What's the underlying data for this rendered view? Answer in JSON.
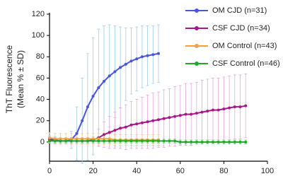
{
  "chart_data": {
    "type": "line",
    "ylabel": [
      "ThT Fluorescence",
      "(Mean % ± SD)"
    ],
    "xlim": [
      0,
      100
    ],
    "xticks": [
      0,
      20,
      40,
      60,
      80,
      100
    ],
    "ylim": [
      -18,
      120
    ],
    "yticks": [
      0,
      20,
      40,
      60,
      80,
      100,
      120
    ],
    "legend": "upper right",
    "series": [
      {
        "name": "OM CJD (n=31)",
        "color": "#4a55dd",
        "error_color": "#9fcbe6",
        "x": [
          0,
          2.5,
          5,
          7.5,
          10,
          12.5,
          15,
          17.5,
          20,
          22.5,
          25,
          27.5,
          30,
          32.5,
          35,
          37.5,
          40,
          42.5,
          45,
          47.5,
          50
        ],
        "values": [
          3,
          2,
          1,
          1,
          2,
          8,
          20,
          33,
          43,
          51,
          57,
          62,
          66,
          70,
          73,
          76,
          78,
          80,
          81,
          82,
          83
        ],
        "errors": [
          3,
          3,
          3,
          3,
          8,
          25,
          40,
          50,
          55,
          55,
          52,
          48,
          43,
          38,
          34,
          31,
          30,
          29,
          28,
          27,
          27
        ]
      },
      {
        "name": "CSF CJD (n=34)",
        "color": "#a8168c",
        "error_color": "#e6a6dc",
        "x": [
          0,
          2.5,
          5,
          7.5,
          10,
          12.5,
          15,
          17.5,
          20,
          22.5,
          25,
          27.5,
          30,
          32.5,
          35,
          37.5,
          40,
          42.5,
          45,
          47.5,
          50,
          52.5,
          55,
          57.5,
          60,
          62.5,
          65,
          67.5,
          70,
          72.5,
          75,
          77.5,
          80,
          82.5,
          85,
          87.5,
          90
        ],
        "values": [
          2,
          1,
          1,
          1,
          1,
          1,
          1,
          1,
          2,
          4,
          7,
          9,
          11,
          13,
          14,
          16,
          17,
          18,
          19,
          20,
          21,
          22,
          23,
          24,
          25,
          26,
          26,
          27,
          28,
          29,
          30,
          30,
          31,
          32,
          33,
          33,
          34
        ],
        "errors": [
          3,
          3,
          3,
          3,
          3,
          3,
          3,
          3,
          3,
          8,
          12,
          15,
          17,
          19,
          21,
          22,
          23,
          24,
          25,
          26,
          26,
          27,
          27,
          28,
          28,
          29,
          29,
          29,
          30,
          30,
          30,
          30,
          30,
          30,
          30,
          30,
          30
        ]
      },
      {
        "name": "OM Control (n=43)",
        "color": "#f0a23c",
        "error_color": "#f5c98e",
        "x": [
          0,
          2.5,
          5,
          7.5,
          10,
          12.5,
          15,
          17.5,
          20,
          22.5,
          25,
          27.5,
          30,
          32.5,
          35,
          37.5,
          40,
          42.5,
          45,
          47.5,
          50
        ],
        "values": [
          4,
          3,
          3,
          3,
          3,
          3,
          3,
          3,
          3,
          3,
          3,
          3,
          2,
          2,
          2,
          2,
          2,
          2,
          2,
          2,
          2
        ],
        "errors": [
          5,
          5,
          5,
          5,
          5,
          5,
          5,
          5,
          5,
          5,
          5,
          5,
          5,
          5,
          5,
          5,
          5,
          5,
          5,
          5,
          5
        ]
      },
      {
        "name": "CSF Control (n=46)",
        "color": "#1faa2a",
        "error_color": "#8fd08f",
        "x": [
          0,
          2.5,
          5,
          7.5,
          10,
          12.5,
          15,
          17.5,
          20,
          22.5,
          25,
          27.5,
          30,
          32.5,
          35,
          37.5,
          40,
          42.5,
          45,
          47.5,
          50,
          52.5,
          55,
          57.5,
          60,
          62.5,
          65,
          67.5,
          70,
          72.5,
          75,
          77.5,
          80,
          82.5,
          85,
          87.5,
          90
        ],
        "values": [
          1,
          1,
          1,
          1,
          1,
          1,
          1,
          1,
          1,
          1,
          1,
          1,
          1,
          1,
          1,
          1,
          1,
          1,
          1,
          1,
          1,
          1,
          1,
          1,
          0,
          0,
          0,
          0,
          0,
          0,
          0,
          0,
          0,
          0,
          0,
          0,
          0
        ],
        "errors": [
          2,
          2,
          2,
          2,
          2,
          2,
          2,
          2,
          2,
          2,
          2,
          2,
          2,
          2,
          2,
          2,
          2,
          2,
          2,
          2,
          2,
          2,
          2,
          2,
          2,
          2,
          2,
          2,
          2,
          2,
          2,
          2,
          2,
          2,
          2,
          2,
          2
        ]
      }
    ]
  }
}
